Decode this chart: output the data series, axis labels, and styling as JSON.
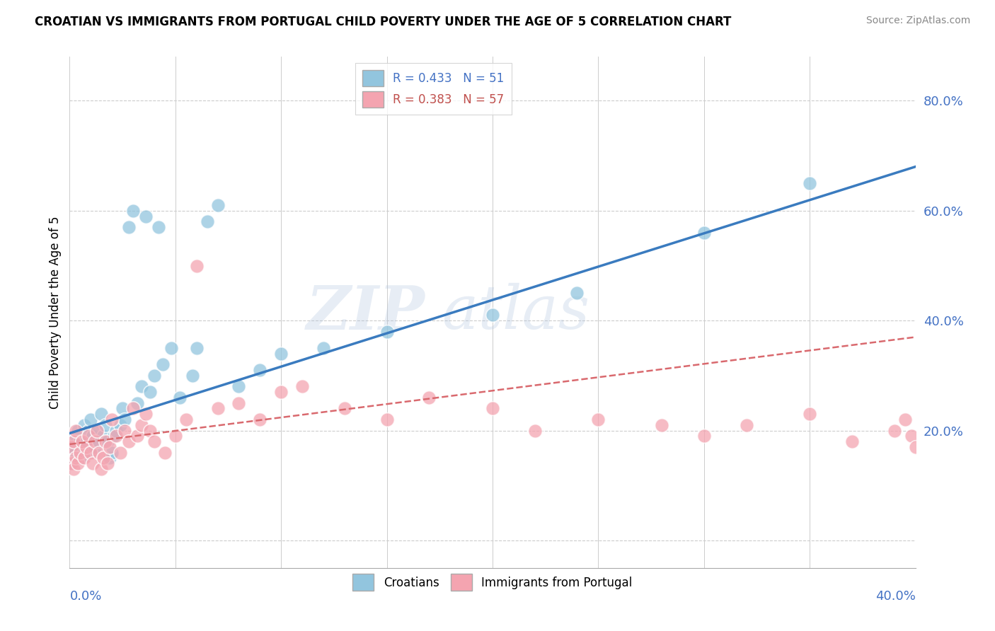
{
  "title": "CROATIAN VS IMMIGRANTS FROM PORTUGAL CHILD POVERTY UNDER THE AGE OF 5 CORRELATION CHART",
  "source": "Source: ZipAtlas.com",
  "ylabel": "Child Poverty Under the Age of 5",
  "y_ticks": [
    0.0,
    0.2,
    0.4,
    0.6,
    0.8
  ],
  "y_tick_labels": [
    "",
    "20.0%",
    "40.0%",
    "60.0%",
    "80.0%"
  ],
  "x_range": [
    0.0,
    0.4
  ],
  "y_range": [
    -0.05,
    0.88
  ],
  "color_croatian": "#92c5de",
  "color_portugal": "#f4a4b0",
  "line_color_croatian": "#3a7bbf",
  "line_color_portugal": "#d9696e",
  "watermark_zip": "ZIP",
  "watermark_atlas": "atlas",
  "background_color": "#ffffff",
  "croatian_x": [
    0.001,
    0.002,
    0.003,
    0.003,
    0.004,
    0.005,
    0.006,
    0.007,
    0.008,
    0.009,
    0.01,
    0.01,
    0.011,
    0.012,
    0.013,
    0.014,
    0.015,
    0.016,
    0.017,
    0.018,
    0.019,
    0.02,
    0.021,
    0.022,
    0.024,
    0.025,
    0.026,
    0.028,
    0.03,
    0.032,
    0.034,
    0.036,
    0.038,
    0.04,
    0.042,
    0.044,
    0.048,
    0.052,
    0.058,
    0.06,
    0.065,
    0.07,
    0.08,
    0.09,
    0.1,
    0.12,
    0.15,
    0.2,
    0.24,
    0.3,
    0.35
  ],
  "croatian_y": [
    0.14,
    0.17,
    0.16,
    0.19,
    0.2,
    0.18,
    0.15,
    0.21,
    0.18,
    0.2,
    0.16,
    0.22,
    0.19,
    0.17,
    0.2,
    0.18,
    0.23,
    0.19,
    0.21,
    0.18,
    0.15,
    0.16,
    0.19,
    0.2,
    0.21,
    0.24,
    0.22,
    0.57,
    0.6,
    0.25,
    0.28,
    0.59,
    0.27,
    0.3,
    0.57,
    0.32,
    0.35,
    0.26,
    0.3,
    0.35,
    0.58,
    0.61,
    0.28,
    0.31,
    0.34,
    0.35,
    0.38,
    0.41,
    0.45,
    0.56,
    0.65
  ],
  "portugal_x": [
    0.001,
    0.001,
    0.002,
    0.002,
    0.003,
    0.003,
    0.004,
    0.005,
    0.006,
    0.007,
    0.008,
    0.009,
    0.01,
    0.011,
    0.012,
    0.013,
    0.014,
    0.015,
    0.016,
    0.017,
    0.018,
    0.019,
    0.02,
    0.022,
    0.024,
    0.026,
    0.028,
    0.03,
    0.032,
    0.034,
    0.036,
    0.038,
    0.04,
    0.045,
    0.05,
    0.055,
    0.06,
    0.07,
    0.08,
    0.09,
    0.1,
    0.11,
    0.13,
    0.15,
    0.17,
    0.2,
    0.22,
    0.25,
    0.28,
    0.3,
    0.32,
    0.35,
    0.37,
    0.39,
    0.395,
    0.398,
    0.4
  ],
  "portugal_y": [
    0.14,
    0.17,
    0.13,
    0.18,
    0.15,
    0.2,
    0.14,
    0.16,
    0.18,
    0.15,
    0.17,
    0.19,
    0.16,
    0.14,
    0.18,
    0.2,
    0.16,
    0.13,
    0.15,
    0.18,
    0.14,
    0.17,
    0.22,
    0.19,
    0.16,
    0.2,
    0.18,
    0.24,
    0.19,
    0.21,
    0.23,
    0.2,
    0.18,
    0.16,
    0.19,
    0.22,
    0.5,
    0.24,
    0.25,
    0.22,
    0.27,
    0.28,
    0.24,
    0.22,
    0.26,
    0.24,
    0.2,
    0.22,
    0.21,
    0.19,
    0.21,
    0.23,
    0.18,
    0.2,
    0.22,
    0.19,
    0.17
  ]
}
